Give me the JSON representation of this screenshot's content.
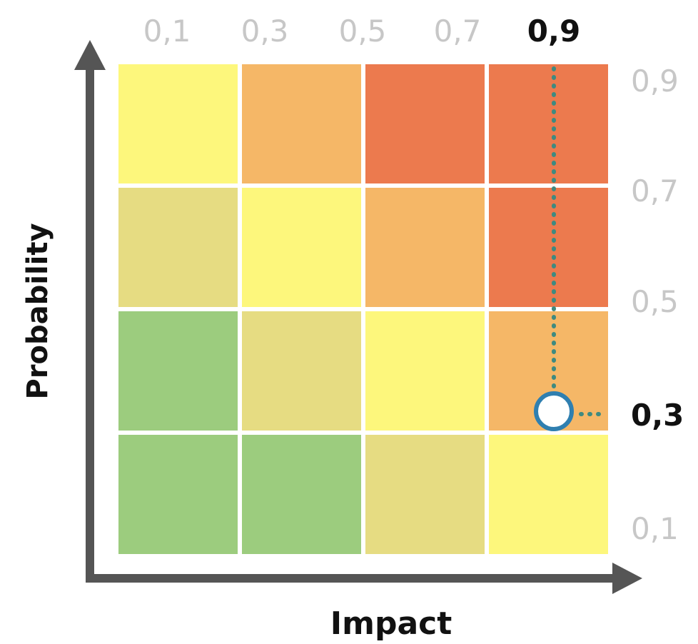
{
  "chart_data": {
    "type": "heatmap",
    "title": "",
    "xlabel": "Impact",
    "ylabel": "Probability",
    "x_ticks": [
      "0,1",
      "0,3",
      "0,5",
      "0,7",
      "0,9"
    ],
    "y_ticks": [
      "0,9",
      "0,7",
      "0,5",
      "0,3",
      "0,1"
    ],
    "highlight": {
      "x_label": "0,9",
      "y_label": "0,3"
    },
    "tick_color": "#c7c7c7",
    "highlight_tick_color": "#111111",
    "colors": {
      "green": "#9ccc7e",
      "khaki": "#e6dc82",
      "yellow": "#fdf77c",
      "light_orange": "#f5b767",
      "orange": "#ec7a4e",
      "axis": "#555555",
      "guide": "#3f8a80",
      "marker": "#2f7fb0"
    },
    "grid": [
      [
        "yellow",
        "light_orange",
        "orange",
        "orange"
      ],
      [
        "khaki",
        "yellow",
        "light_orange",
        "orange"
      ],
      [
        "green",
        "khaki",
        "yellow",
        "light_orange"
      ],
      [
        "green",
        "green",
        "khaki",
        "yellow"
      ]
    ],
    "grid_lines": false,
    "legend": "none"
  }
}
